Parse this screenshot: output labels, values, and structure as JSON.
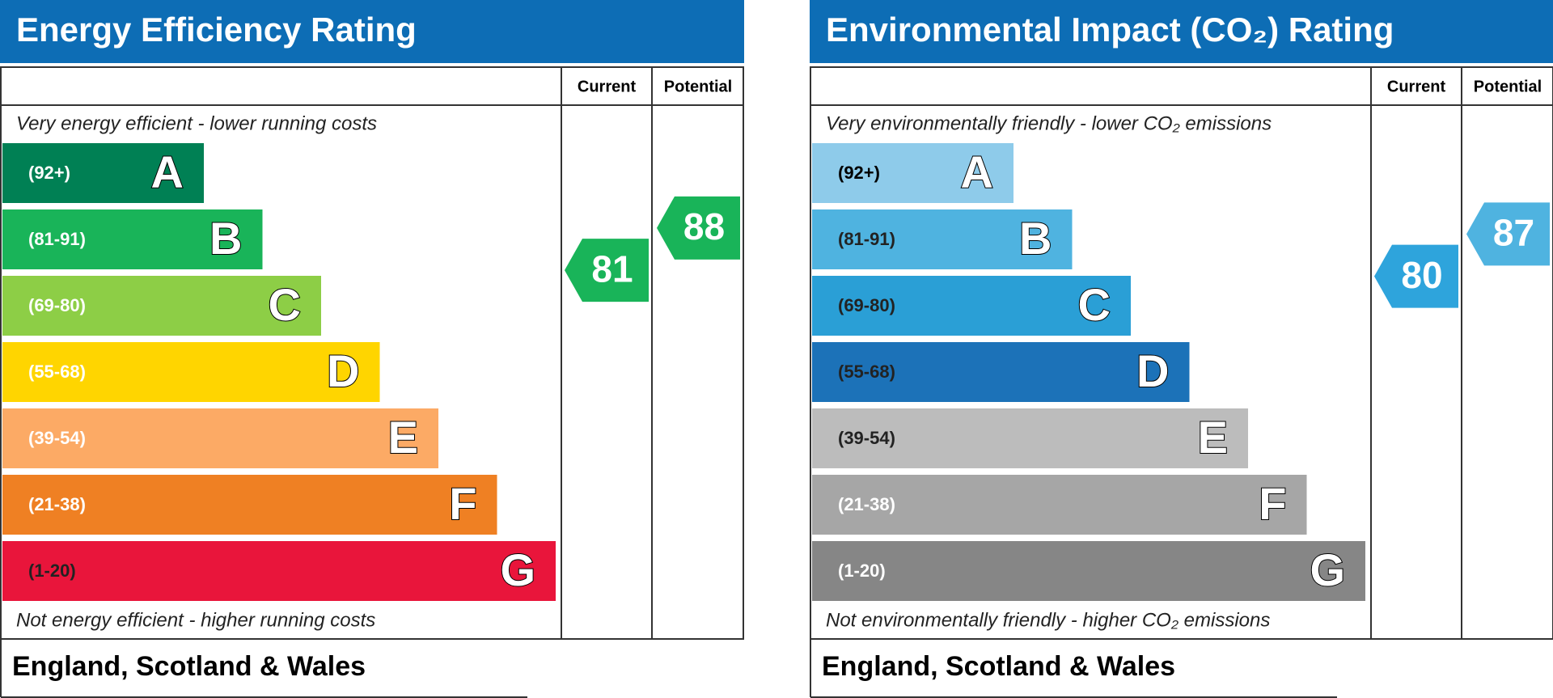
{
  "panels": [
    {
      "title": "Energy Efficiency Rating",
      "current_label": "Current",
      "potential_label": "Potential",
      "top_note": "Very energy efficient - lower running costs",
      "bottom_note": "Not energy efficient - higher running costs",
      "bands": [
        {
          "range": "(92+)",
          "letter": "A",
          "color": "#008054",
          "text_color": "#ffffff"
        },
        {
          "range": "(81-91)",
          "letter": "B",
          "color": "#19b459",
          "text_color": "#ffffff"
        },
        {
          "range": "(69-80)",
          "letter": "C",
          "color": "#8dce46",
          "text_color": "#ffffff"
        },
        {
          "range": "(55-68)",
          "letter": "D",
          "color": "#ffd500",
          "text_color": "#ffffff"
        },
        {
          "range": "(39-54)",
          "letter": "E",
          "color": "#fcaa65",
          "text_color": "#ffffff"
        },
        {
          "range": "(21-38)",
          "letter": "F",
          "color": "#ef8023",
          "text_color": "#ffffff"
        },
        {
          "range": "(1-20)",
          "letter": "G",
          "color": "#e9153b",
          "text_color": "#222222"
        }
      ],
      "current": 81,
      "current_color": "#19b459",
      "potential": 88,
      "potential_color": "#19b459",
      "footer": "England, Scotland & Wales"
    },
    {
      "title": "Environmental Impact (CO₂) Rating",
      "current_label": "Current",
      "potential_label": "Potential",
      "top_note": "Very environmentally friendly - lower CO₂ emissions",
      "bottom_note": "Not environmentally friendly - higher CO₂ emissions",
      "bands": [
        {
          "range": "(92+)",
          "letter": "A",
          "color": "#8ecbea",
          "text_color": "#000000"
        },
        {
          "range": "(81-91)",
          "letter": "B",
          "color": "#4fb3e0",
          "text_color": "#222222"
        },
        {
          "range": "(69-80)",
          "letter": "C",
          "color": "#2a9fd6",
          "text_color": "#222222"
        },
        {
          "range": "(55-68)",
          "letter": "D",
          "color": "#1c72b8",
          "text_color": "#222222"
        },
        {
          "range": "(39-54)",
          "letter": "E",
          "color": "#bcbcbc",
          "text_color": "#222222"
        },
        {
          "range": "(21-38)",
          "letter": "F",
          "color": "#a6a6a6",
          "text_color": "#ffffff"
        },
        {
          "range": "(1-20)",
          "letter": "G",
          "color": "#868686",
          "text_color": "#ffffff"
        }
      ],
      "current": 80,
      "current_color": "#2ea4dc",
      "potential": 87,
      "potential_color": "#4fb3e0",
      "footer": "England, Scotland & Wales"
    }
  ]
}
